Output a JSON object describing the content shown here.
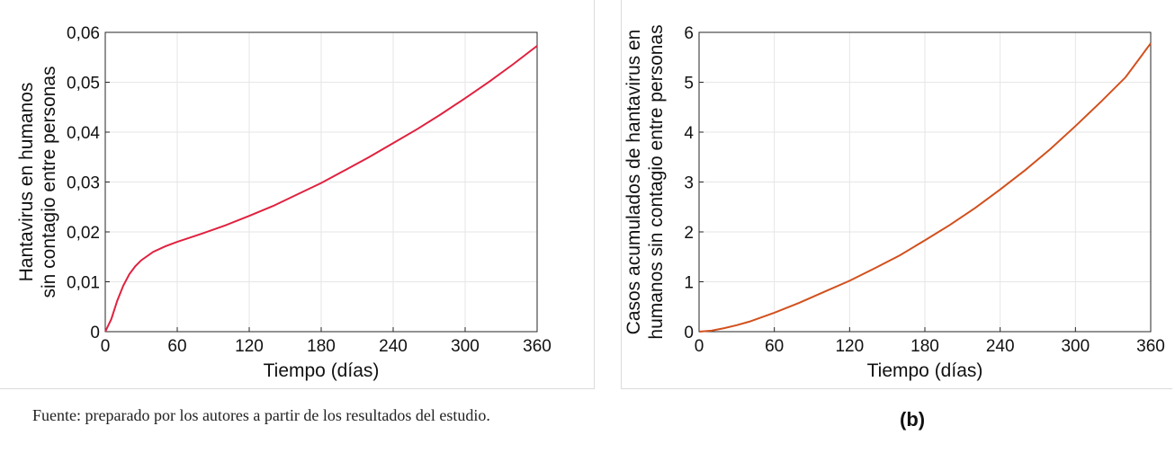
{
  "chart_data": [
    {
      "type": "line",
      "panel": "a",
      "xlabel": "Tiempo (días)",
      "ylabel_lines": [
        "Hantavirus en humanos",
        "sin contagio entre personas"
      ],
      "xlim": [
        0,
        360
      ],
      "ylim": [
        0,
        0.06
      ],
      "xticks": [
        0,
        60,
        120,
        180,
        240,
        300,
        360
      ],
      "yticks": [
        "0",
        "0,01",
        "0,02",
        "0,03",
        "0,04",
        "0,05",
        "0,06"
      ],
      "grid": true,
      "color": "#e0213f",
      "series": [
        {
          "x": [
            0,
            5,
            10,
            15,
            20,
            25,
            30,
            40,
            50,
            60,
            80,
            100,
            120,
            140,
            160,
            180,
            200,
            220,
            240,
            260,
            280,
            300,
            320,
            340,
            360
          ],
          "values": [
            0,
            0.0025,
            0.0062,
            0.0092,
            0.0115,
            0.0131,
            0.0143,
            0.016,
            0.0171,
            0.018,
            0.0196,
            0.0213,
            0.0232,
            0.0252,
            0.0275,
            0.0298,
            0.0324,
            0.035,
            0.0378,
            0.0406,
            0.0436,
            0.0468,
            0.0501,
            0.0536,
            0.0573
          ]
        }
      ]
    },
    {
      "type": "line",
      "panel": "b",
      "xlabel": "Tiempo (días)",
      "ylabel_lines": [
        "Casos acumulados de hantavirus en",
        "humanos sin contagio entre personas"
      ],
      "xlim": [
        0,
        360
      ],
      "ylim": [
        0,
        6
      ],
      "xticks": [
        0,
        60,
        120,
        180,
        240,
        300,
        360
      ],
      "yticks": [
        "0",
        "1",
        "2",
        "3",
        "4",
        "5",
        "6"
      ],
      "grid": true,
      "color": "#d2501d",
      "series": [
        {
          "x": [
            0,
            10,
            20,
            30,
            40,
            60,
            80,
            100,
            120,
            140,
            160,
            180,
            200,
            220,
            240,
            260,
            280,
            300,
            320,
            340,
            360
          ],
          "values": [
            0,
            0.02,
            0.07,
            0.13,
            0.2,
            0.38,
            0.58,
            0.8,
            1.02,
            1.27,
            1.53,
            1.83,
            2.14,
            2.48,
            2.85,
            3.24,
            3.66,
            4.12,
            4.6,
            5.1,
            5.78
          ]
        }
      ]
    }
  ],
  "footer": {
    "source_note": "Fuente: preparado por los autores a partir de los resultados del estudio.",
    "panel_b_label": "(b)"
  }
}
